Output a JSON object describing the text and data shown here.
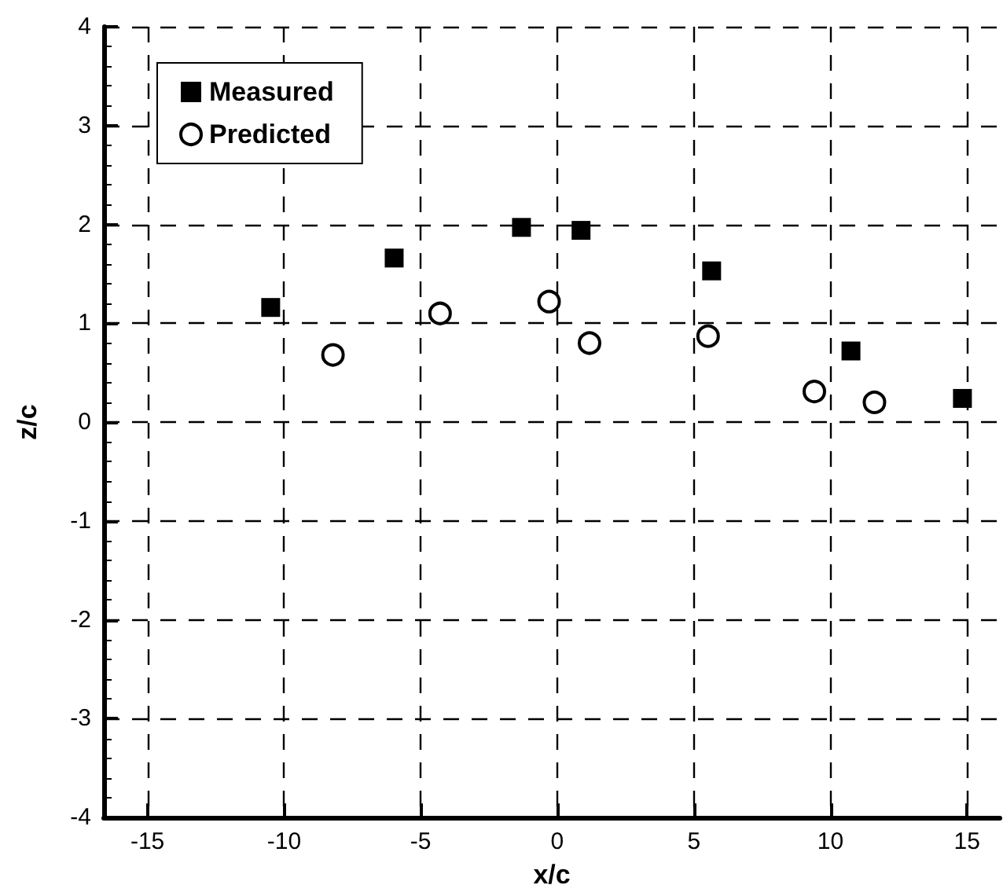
{
  "chart_data": {
    "type": "scatter",
    "xlabel": "x/c",
    "ylabel": "z/c",
    "xlim": [
      -16.6,
      16.2
    ],
    "ylim": [
      -4,
      4
    ],
    "xticks": [
      -15,
      -10,
      -5,
      0,
      5,
      10,
      15
    ],
    "yticks": [
      -4,
      -3,
      -2,
      -1,
      0,
      1,
      2,
      3,
      4
    ],
    "grid": true,
    "line_style": "dashed",
    "legend": "top left",
    "series": [
      {
        "name": "Measured",
        "color": "#000000",
        "marker": "square",
        "x": [
          -10.49,
          -5.97,
          -1.31,
          0.87,
          5.65,
          10.75,
          14.83
        ],
        "values": [
          1.16,
          1.66,
          1.97,
          1.94,
          1.53,
          0.72,
          0.24
        ]
      },
      {
        "name": "Predicted",
        "color": "#000000",
        "marker": "circle",
        "x": [
          -8.21,
          -4.29,
          -0.3,
          1.18,
          5.52,
          9.41,
          11.61
        ],
        "values": [
          0.68,
          1.1,
          1.22,
          0.8,
          0.87,
          0.31,
          0.2
        ]
      }
    ]
  }
}
